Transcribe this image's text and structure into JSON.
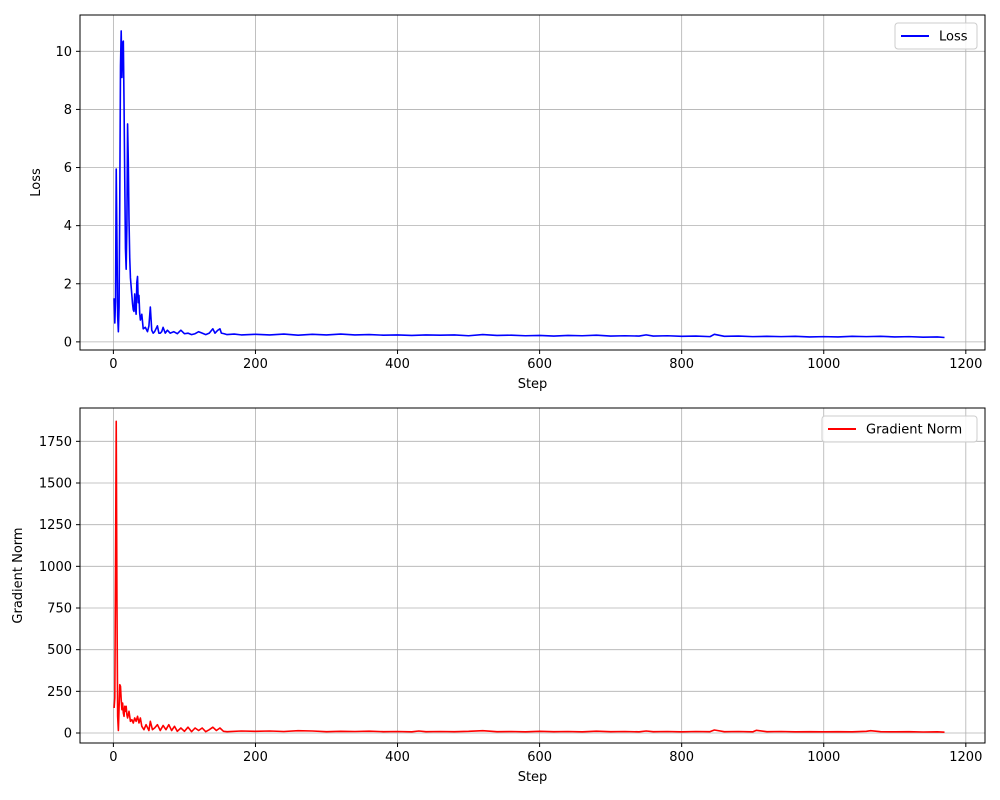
{
  "chart_data": [
    {
      "type": "line",
      "xlabel": "Step",
      "ylabel": "Loss",
      "xlim": [
        -47,
        1227
      ],
      "ylim": [
        -0.28,
        11.25
      ],
      "xticks": [
        0,
        200,
        400,
        600,
        800,
        1000,
        1200
      ],
      "yticks": [
        0,
        2,
        4,
        6,
        8,
        10
      ],
      "grid": true,
      "legend_position": "top-right",
      "series": [
        {
          "name": "Loss",
          "color": "#0000ff",
          "points": [
            [
              1,
              1.5
            ],
            [
              2,
              0.65
            ],
            [
              3,
              1.4
            ],
            [
              4,
              5.95
            ],
            [
              5,
              3.5
            ],
            [
              6,
              0.9
            ],
            [
              7,
              0.35
            ],
            [
              8,
              1.2
            ],
            [
              9,
              4.9
            ],
            [
              10,
              9.5
            ],
            [
              11,
              10.7
            ],
            [
              12,
              9.1
            ],
            [
              13,
              10.3
            ],
            [
              14,
              10.35
            ],
            [
              15,
              8.2
            ],
            [
              16,
              5.6
            ],
            [
              17,
              3.2
            ],
            [
              18,
              2.5
            ],
            [
              19,
              4.0
            ],
            [
              20,
              7.5
            ],
            [
              21,
              6.2
            ],
            [
              22,
              4.2
            ],
            [
              23,
              2.9
            ],
            [
              24,
              2.2
            ],
            [
              25,
              1.9
            ],
            [
              26,
              1.6
            ],
            [
              27,
              1.3
            ],
            [
              28,
              1.1
            ],
            [
              29,
              1.05
            ],
            [
              30,
              1.65
            ],
            [
              31,
              1.2
            ],
            [
              32,
              0.95
            ],
            [
              33,
              2.05
            ],
            [
              34,
              2.25
            ],
            [
              35,
              1.35
            ],
            [
              36,
              1.6
            ],
            [
              37,
              1.0
            ],
            [
              38,
              0.75
            ],
            [
              40,
              0.95
            ],
            [
              42,
              0.45
            ],
            [
              45,
              0.5
            ],
            [
              48,
              0.35
            ],
            [
              50,
              0.55
            ],
            [
              52,
              1.2
            ],
            [
              54,
              0.4
            ],
            [
              56,
              0.3
            ],
            [
              58,
              0.35
            ],
            [
              60,
              0.45
            ],
            [
              62,
              0.55
            ],
            [
              64,
              0.3
            ],
            [
              66,
              0.3
            ],
            [
              68,
              0.35
            ],
            [
              70,
              0.5
            ],
            [
              73,
              0.3
            ],
            [
              76,
              0.4
            ],
            [
              80,
              0.3
            ],
            [
              85,
              0.35
            ],
            [
              90,
              0.28
            ],
            [
              95,
              0.4
            ],
            [
              100,
              0.28
            ],
            [
              105,
              0.3
            ],
            [
              110,
              0.25
            ],
            [
              115,
              0.28
            ],
            [
              120,
              0.35
            ],
            [
              125,
              0.3
            ],
            [
              130,
              0.25
            ],
            [
              135,
              0.3
            ],
            [
              140,
              0.45
            ],
            [
              143,
              0.3
            ],
            [
              147,
              0.4
            ],
            [
              150,
              0.45
            ],
            [
              152,
              0.3
            ],
            [
              156,
              0.28
            ],
            [
              160,
              0.25
            ],
            [
              170,
              0.27
            ],
            [
              180,
              0.24
            ],
            [
              200,
              0.26
            ],
            [
              220,
              0.24
            ],
            [
              240,
              0.27
            ],
            [
              260,
              0.23
            ],
            [
              280,
              0.26
            ],
            [
              300,
              0.24
            ],
            [
              320,
              0.27
            ],
            [
              340,
              0.24
            ],
            [
              360,
              0.25
            ],
            [
              380,
              0.23
            ],
            [
              400,
              0.24
            ],
            [
              420,
              0.22
            ],
            [
              440,
              0.24
            ],
            [
              460,
              0.23
            ],
            [
              480,
              0.24
            ],
            [
              500,
              0.21
            ],
            [
              520,
              0.25
            ],
            [
              540,
              0.22
            ],
            [
              560,
              0.23
            ],
            [
              580,
              0.21
            ],
            [
              600,
              0.22
            ],
            [
              620,
              0.2
            ],
            [
              640,
              0.22
            ],
            [
              660,
              0.21
            ],
            [
              680,
              0.23
            ],
            [
              700,
              0.2
            ],
            [
              720,
              0.21
            ],
            [
              740,
              0.2
            ],
            [
              750,
              0.24
            ],
            [
              760,
              0.2
            ],
            [
              780,
              0.21
            ],
            [
              800,
              0.19
            ],
            [
              820,
              0.2
            ],
            [
              840,
              0.18
            ],
            [
              846,
              0.26
            ],
            [
              860,
              0.19
            ],
            [
              880,
              0.2
            ],
            [
              900,
              0.18
            ],
            [
              920,
              0.19
            ],
            [
              940,
              0.18
            ],
            [
              960,
              0.19
            ],
            [
              980,
              0.17
            ],
            [
              1000,
              0.18
            ],
            [
              1020,
              0.17
            ],
            [
              1040,
              0.19
            ],
            [
              1060,
              0.18
            ],
            [
              1080,
              0.19
            ],
            [
              1100,
              0.17
            ],
            [
              1120,
              0.18
            ],
            [
              1140,
              0.16
            ],
            [
              1160,
              0.17
            ],
            [
              1170,
              0.15
            ]
          ]
        }
      ]
    },
    {
      "type": "line",
      "xlabel": "Step",
      "ylabel": "Gradient Norm",
      "xlim": [
        -47,
        1227
      ],
      "ylim": [
        -60,
        1950
      ],
      "xticks": [
        0,
        200,
        400,
        600,
        800,
        1000,
        1200
      ],
      "yticks": [
        0,
        250,
        500,
        750,
        1000,
        1250,
        1500,
        1750
      ],
      "grid": true,
      "legend_position": "top-right",
      "series": [
        {
          "name": "Gradient Norm",
          "color": "#ff0000",
          "points": [
            [
              1,
              150
            ],
            [
              2,
              210
            ],
            [
              3,
              1000
            ],
            [
              4,
              1870
            ],
            [
              5,
              800
            ],
            [
              6,
              100
            ],
            [
              7,
              15
            ],
            [
              8,
              150
            ],
            [
              9,
              290
            ],
            [
              10,
              280
            ],
            [
              11,
              200
            ],
            [
              12,
              140
            ],
            [
              13,
              180
            ],
            [
              14,
              120
            ],
            [
              15,
              100
            ],
            [
              16,
              160
            ],
            [
              17,
              130
            ],
            [
              18,
              160
            ],
            [
              19,
              110
            ],
            [
              20,
              90
            ],
            [
              22,
              130
            ],
            [
              24,
              70
            ],
            [
              26,
              80
            ],
            [
              28,
              60
            ],
            [
              30,
              90
            ],
            [
              32,
              70
            ],
            [
              34,
              100
            ],
            [
              36,
              60
            ],
            [
              38,
              90
            ],
            [
              40,
              40
            ],
            [
              43,
              20
            ],
            [
              46,
              50
            ],
            [
              50,
              15
            ],
            [
              52,
              70
            ],
            [
              55,
              20
            ],
            [
              58,
              30
            ],
            [
              62,
              50
            ],
            [
              66,
              15
            ],
            [
              70,
              45
            ],
            [
              74,
              20
            ],
            [
              78,
              50
            ],
            [
              82,
              15
            ],
            [
              86,
              40
            ],
            [
              90,
              10
            ],
            [
              95,
              30
            ],
            [
              100,
              10
            ],
            [
              105,
              35
            ],
            [
              110,
              8
            ],
            [
              115,
              30
            ],
            [
              120,
              15
            ],
            [
              125,
              30
            ],
            [
              130,
              8
            ],
            [
              135,
              20
            ],
            [
              140,
              35
            ],
            [
              145,
              15
            ],
            [
              150,
              30
            ],
            [
              155,
              10
            ],
            [
              160,
              8
            ],
            [
              180,
              12
            ],
            [
              200,
              10
            ],
            [
              220,
              12
            ],
            [
              240,
              9
            ],
            [
              260,
              14
            ],
            [
              280,
              12
            ],
            [
              300,
              8
            ],
            [
              320,
              10
            ],
            [
              340,
              9
            ],
            [
              360,
              11
            ],
            [
              380,
              8
            ],
            [
              400,
              9
            ],
            [
              420,
              7
            ],
            [
              430,
              12
            ],
            [
              440,
              8
            ],
            [
              460,
              9
            ],
            [
              480,
              8
            ],
            [
              500,
              10
            ],
            [
              520,
              14
            ],
            [
              540,
              8
            ],
            [
              560,
              9
            ],
            [
              580,
              7
            ],
            [
              600,
              10
            ],
            [
              620,
              8
            ],
            [
              640,
              9
            ],
            [
              660,
              7
            ],
            [
              680,
              11
            ],
            [
              700,
              8
            ],
            [
              720,
              9
            ],
            [
              740,
              7
            ],
            [
              750,
              12
            ],
            [
              760,
              8
            ],
            [
              780,
              9
            ],
            [
              800,
              7
            ],
            [
              820,
              9
            ],
            [
              840,
              8
            ],
            [
              846,
              18
            ],
            [
              860,
              8
            ],
            [
              880,
              9
            ],
            [
              900,
              7
            ],
            [
              905,
              16
            ],
            [
              920,
              8
            ],
            [
              940,
              9
            ],
            [
              960,
              7
            ],
            [
              980,
              8
            ],
            [
              1000,
              7
            ],
            [
              1020,
              8
            ],
            [
              1040,
              7
            ],
            [
              1060,
              10
            ],
            [
              1066,
              14
            ],
            [
              1080,
              8
            ],
            [
              1100,
              7
            ],
            [
              1120,
              8
            ],
            [
              1140,
              6
            ],
            [
              1160,
              7
            ],
            [
              1170,
              5
            ]
          ]
        }
      ]
    }
  ]
}
